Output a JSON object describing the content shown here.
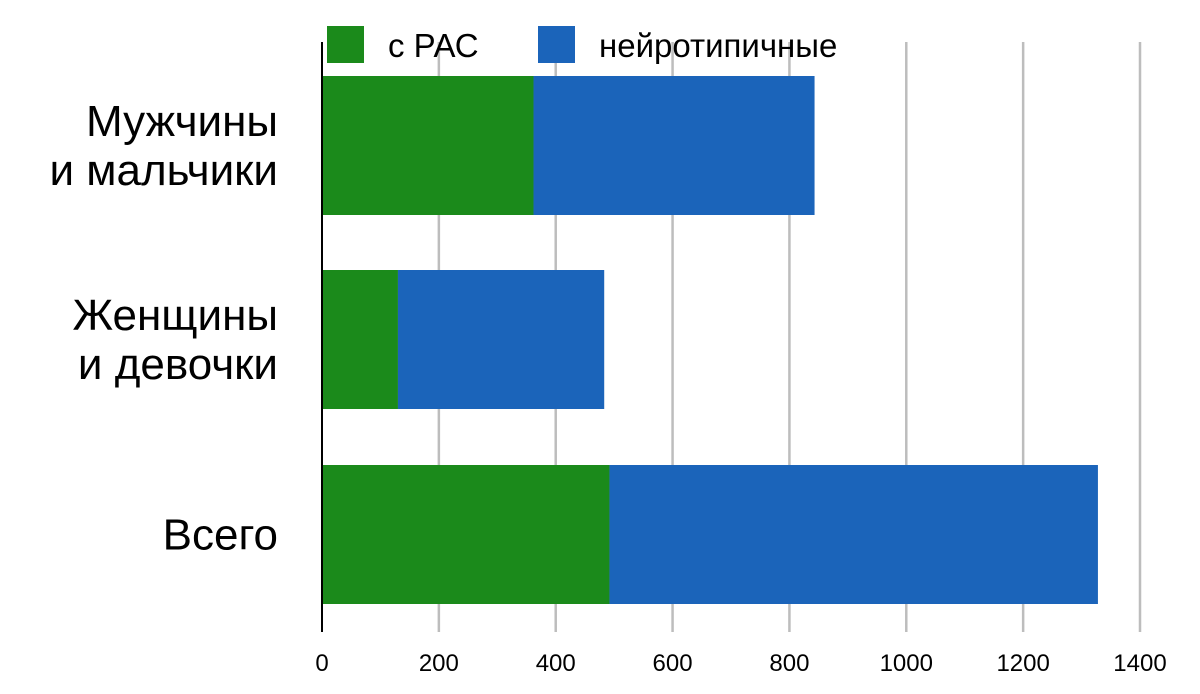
{
  "chart_data": {
    "type": "bar",
    "orientation": "horizontal",
    "stacked": true,
    "categories": [
      [
        "Мужчины",
        "и мальчики"
      ],
      [
        "Женщины",
        "и девочки"
      ],
      [
        "Всего"
      ]
    ],
    "series": [
      {
        "name": "с РАС",
        "color": "#1b8a1b",
        "values": [
          362,
          130,
          492
        ]
      },
      {
        "name": "нейротипичные",
        "color": "#1b64ba",
        "values": [
          481,
          353,
          836
        ]
      }
    ],
    "xlim": [
      0,
      1400
    ],
    "xticks": [
      0,
      200,
      400,
      600,
      800,
      1000,
      1200,
      1400
    ],
    "grid": true,
    "legend_position": "top"
  }
}
